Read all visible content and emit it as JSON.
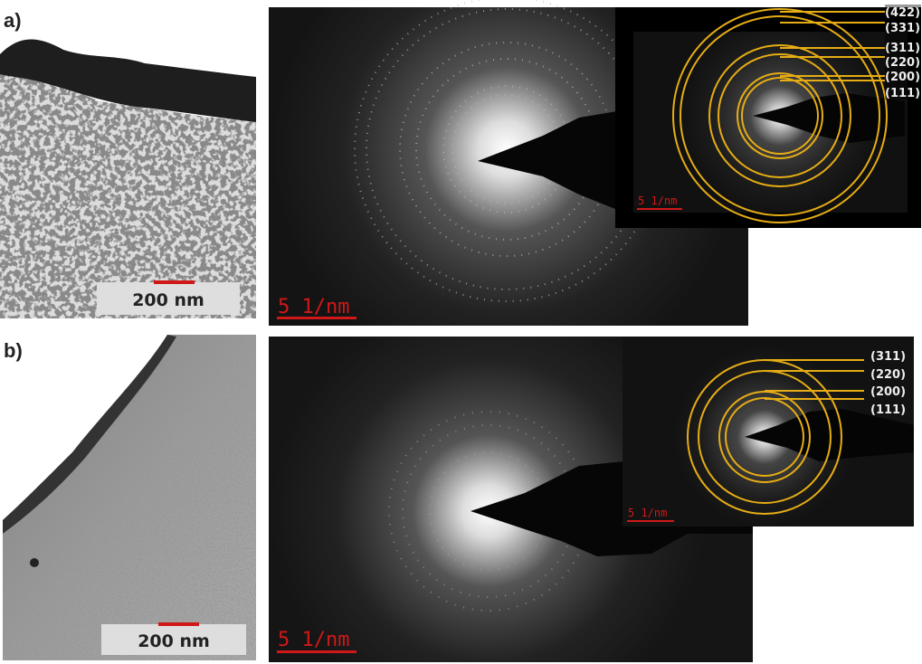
{
  "panels": [
    {
      "label": "a)",
      "tem_scale_bar": "200 nm",
      "saed_scale_bar": "5 1/nm",
      "inset_scale_bar": "5 1/nm",
      "ring_labels": [
        "(422)",
        "(331)",
        "(311)",
        "(220)",
        "(200)",
        "(111)"
      ]
    },
    {
      "label": "b)",
      "tem_scale_bar": "200 nm",
      "saed_scale_bar": "5 1/nm",
      "inset_scale_bar": "5 1/nm",
      "ring_labels": [
        "(311)",
        "(220)",
        "(200)",
        "(111)"
      ]
    }
  ],
  "colors": {
    "ring": "#e6ad14",
    "scale_bar": "#d01818"
  }
}
